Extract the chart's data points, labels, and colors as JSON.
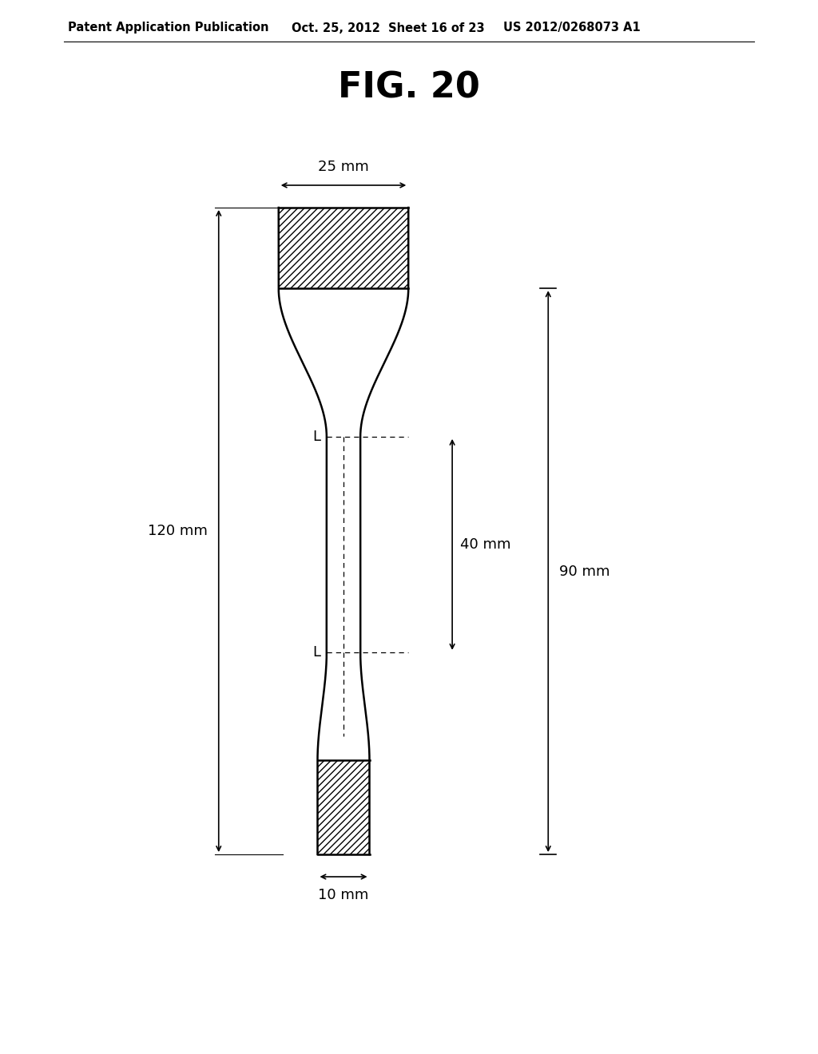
{
  "fig_title": "FIG. 20",
  "header_left": "Patent Application Publication",
  "header_mid": "Oct. 25, 2012  Sheet 16 of 23",
  "header_right": "US 2012/0268073 A1",
  "bg_color": "#ffffff",
  "line_color": "#000000",
  "dim_25mm": "25 mm",
  "dim_120mm": "120 mm",
  "dim_40mm": "40 mm",
  "dim_90mm": "90 mm",
  "dim_10mm": "10 mm",
  "label_L": "L"
}
